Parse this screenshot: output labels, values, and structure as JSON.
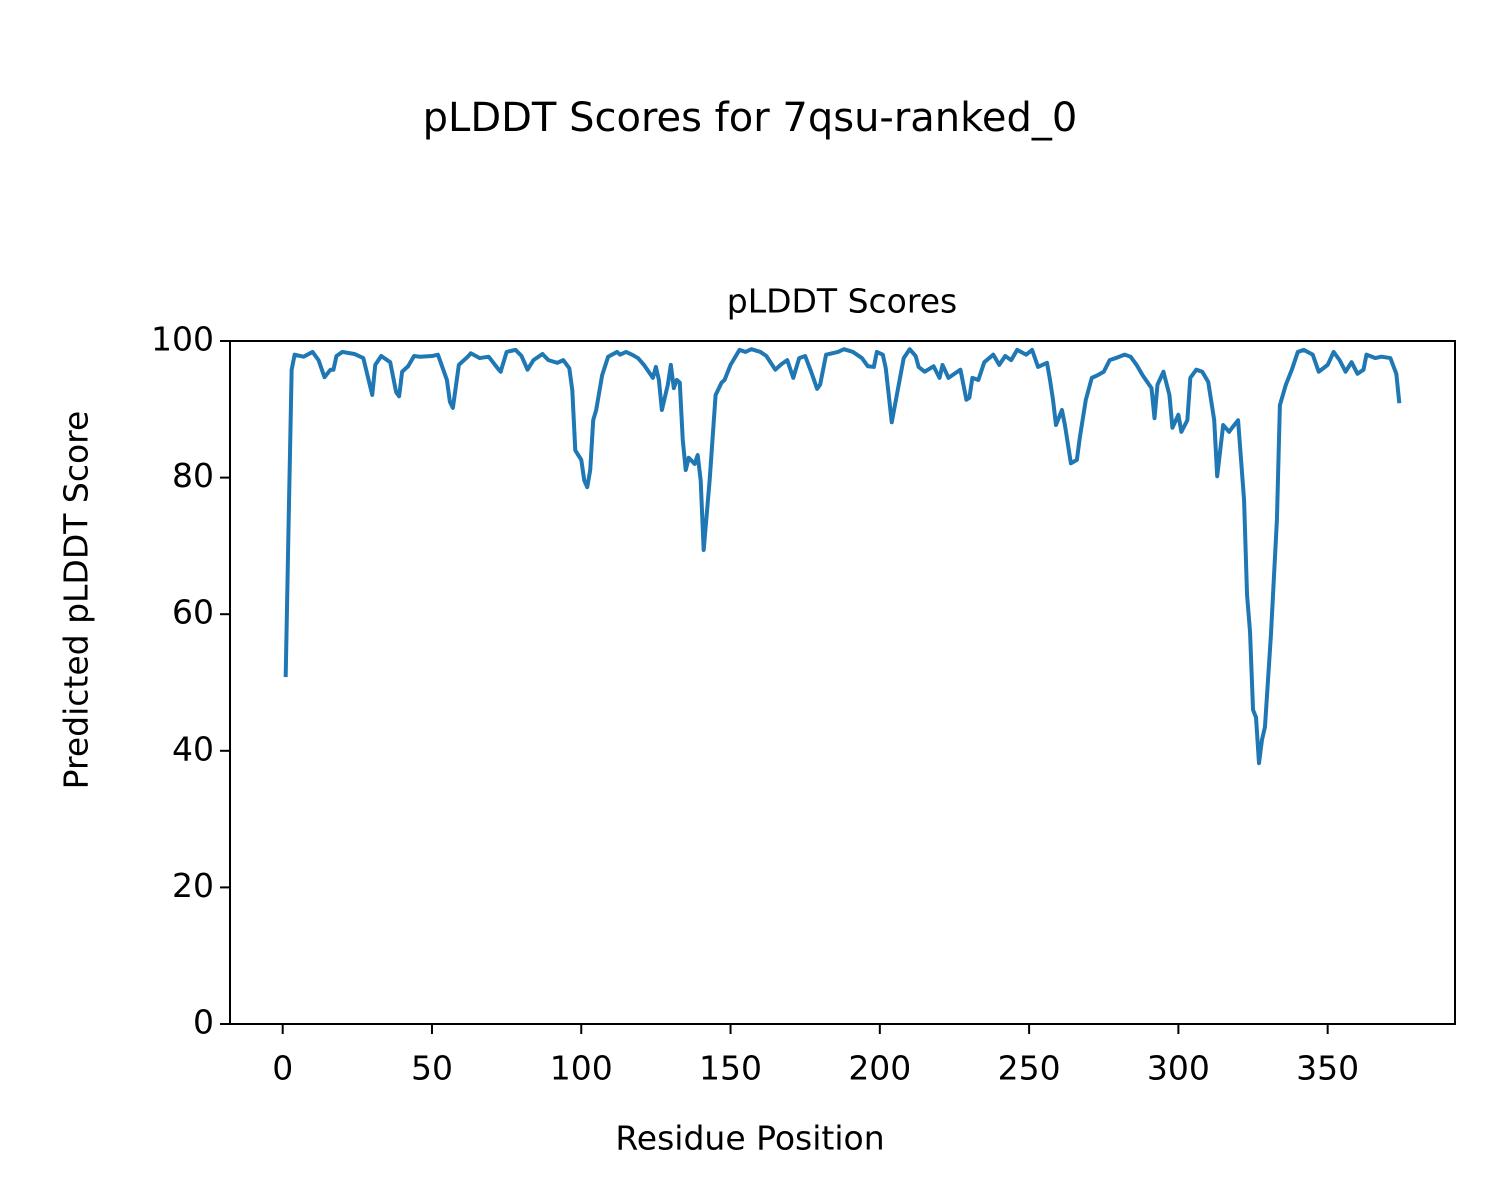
{
  "chart_data": {
    "type": "line",
    "title": "pLDDT Scores for 7qsu-ranked_0",
    "subtitle": "pLDDT Scores",
    "x_label": "Residue Position",
    "y_label": "Predicted pLDDT Score",
    "xlim": [
      -17.65,
      392.65
    ],
    "ylim": [
      0,
      100
    ],
    "xticks": [
      0,
      50,
      100,
      150,
      200,
      250,
      300,
      350
    ],
    "yticks": [
      0,
      20,
      40,
      60,
      80,
      100
    ],
    "grid": false,
    "x": [
      1,
      2,
      3,
      4,
      6,
      7,
      10,
      12,
      14,
      16,
      17,
      18,
      20,
      24,
      27,
      30,
      31,
      33,
      36,
      38,
      39,
      40,
      42,
      44,
      46,
      50,
      52,
      55,
      56,
      57,
      59,
      62,
      63,
      66,
      69,
      72,
      73,
      75,
      78,
      80,
      82,
      84,
      87,
      89,
      92,
      94,
      96,
      97,
      98,
      100,
      101,
      102,
      103,
      104,
      105,
      107,
      109,
      112,
      113,
      115,
      117,
      119,
      121,
      124,
      125,
      126,
      127,
      129,
      130,
      131,
      132,
      133,
      134,
      135,
      136,
      138,
      139,
      140,
      141,
      143,
      145,
      147,
      148,
      150,
      153,
      155,
      157,
      160,
      162,
      165,
      167,
      169,
      171,
      173,
      175,
      177,
      179,
      180,
      182,
      186,
      188,
      191,
      194,
      196,
      198,
      199,
      201,
      202,
      204,
      206,
      208,
      210,
      212,
      213,
      215,
      218,
      220,
      221,
      223,
      225,
      227,
      229,
      230,
      231,
      233,
      235,
      238,
      240,
      242,
      244,
      246,
      249,
      251,
      253,
      256,
      257,
      258,
      259,
      261,
      262,
      264,
      266,
      267,
      269,
      271,
      273,
      275,
      277,
      279,
      282,
      284,
      286,
      288,
      291,
      292,
      293,
      295,
      297,
      298,
      300,
      301,
      303,
      304,
      306,
      308,
      310,
      312,
      313,
      315,
      317,
      318,
      320,
      322,
      323,
      324,
      325,
      326,
      327,
      328,
      329,
      331,
      333,
      334,
      336,
      338,
      340,
      342,
      345,
      347,
      350,
      352,
      354,
      356,
      358,
      360,
      362,
      363,
      366,
      368,
      371,
      373,
      374
    ],
    "series": [
      {
        "name": "pLDDT",
        "color": "#1f77b4",
        "values": [
          50.8,
          73.8,
          95.8,
          98.0,
          97.8,
          97.7,
          98.4,
          97.2,
          94.7,
          95.8,
          95.8,
          97.8,
          98.4,
          98.1,
          97.5,
          92.1,
          96.5,
          97.8,
          96.9,
          92.5,
          91.9,
          95.5,
          96.3,
          97.8,
          97.7,
          97.8,
          98.0,
          94.3,
          91.1,
          90.2,
          96.5,
          97.7,
          98.2,
          97.5,
          97.7,
          96.0,
          95.5,
          98.4,
          98.7,
          97.8,
          95.8,
          97.2,
          98.1,
          97.2,
          96.8,
          97.2,
          96.0,
          92.8,
          84.0,
          82.6,
          79.6,
          78.6,
          81.1,
          88.4,
          89.9,
          95.0,
          97.7,
          98.4,
          98.0,
          98.4,
          98.0,
          97.5,
          96.5,
          94.6,
          96.2,
          94.3,
          89.9,
          93.6,
          96.5,
          93.1,
          94.3,
          93.9,
          85.5,
          81.1,
          82.9,
          82.0,
          83.3,
          79.6,
          69.4,
          79.6,
          92.1,
          93.9,
          94.3,
          96.5,
          98.7,
          98.4,
          98.8,
          98.4,
          97.8,
          95.8,
          96.6,
          97.2,
          94.6,
          97.5,
          97.8,
          95.5,
          93.0,
          93.6,
          98.0,
          98.4,
          98.8,
          98.4,
          97.5,
          96.3,
          96.2,
          98.4,
          98.0,
          96.0,
          88.1,
          92.8,
          97.5,
          98.8,
          97.8,
          96.2,
          95.5,
          96.3,
          94.6,
          96.5,
          94.6,
          95.2,
          95.8,
          91.4,
          91.7,
          94.6,
          94.3,
          96.9,
          98.0,
          96.5,
          97.8,
          97.2,
          98.7,
          98.0,
          98.7,
          96.2,
          96.8,
          94.3,
          91.4,
          87.7,
          89.9,
          87.7,
          82.1,
          82.6,
          85.9,
          91.4,
          94.6,
          95.0,
          95.5,
          97.2,
          97.5,
          98.0,
          97.7,
          96.5,
          95.0,
          93.1,
          88.7,
          93.6,
          95.5,
          92.1,
          87.3,
          89.2,
          86.7,
          88.4,
          94.6,
          95.8,
          95.5,
          94.0,
          88.4,
          80.2,
          87.7,
          86.7,
          87.3,
          88.4,
          76.7,
          62.8,
          57.4,
          46.0,
          44.9,
          38.2,
          41.6,
          43.5,
          57.0,
          73.8,
          90.6,
          93.6,
          95.8,
          98.4,
          98.7,
          98.0,
          95.5,
          96.5,
          98.4,
          97.2,
          95.5,
          96.9,
          95.2,
          95.8,
          98.0,
          97.5,
          97.7,
          97.5,
          95.2,
          90.9
        ]
      }
    ]
  }
}
